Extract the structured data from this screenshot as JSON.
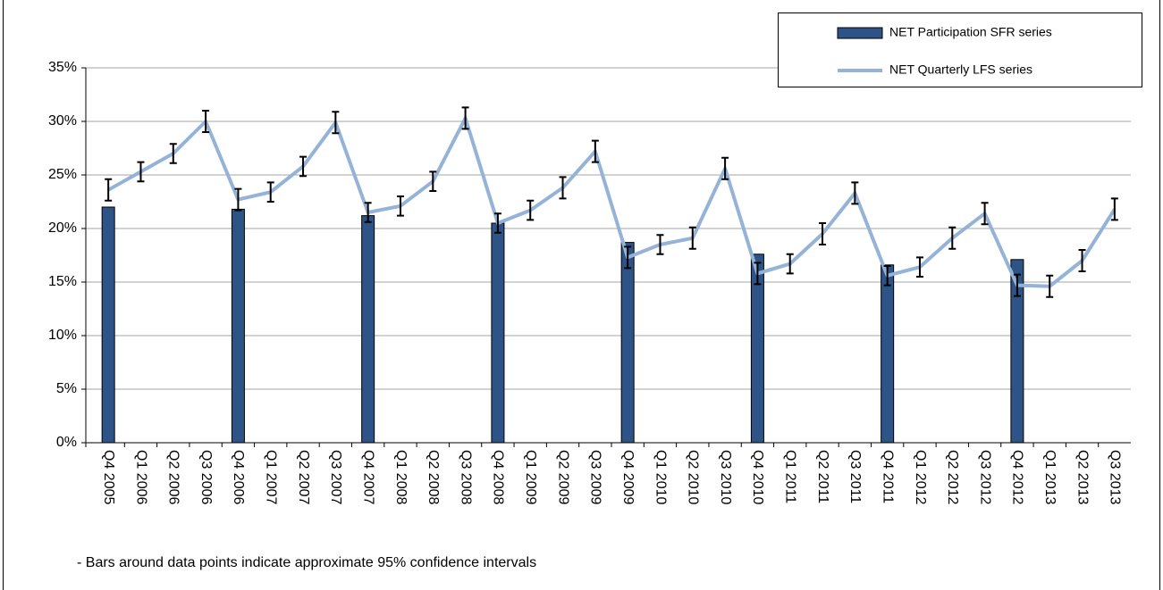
{
  "chart_data": {
    "type": "combo",
    "categories": [
      "Q4 2005",
      "Q1 2006",
      "Q2 2006",
      "Q3 2006",
      "Q4 2006",
      "Q1 2007",
      "Q2 2007",
      "Q3 2007",
      "Q4 2007",
      "Q1 2008",
      "Q2 2008",
      "Q3 2008",
      "Q4 2008",
      "Q1 2009",
      "Q2 2009",
      "Q3 2009",
      "Q4 2009",
      "Q1 2010",
      "Q2 2010",
      "Q3 2010",
      "Q4 2010",
      "Q1 2011",
      "Q2 2011",
      "Q3 2011",
      "Q4 2011",
      "Q1 2012",
      "Q2 2012",
      "Q3 2012",
      "Q4 2012",
      "Q1 2013",
      "Q2 2013",
      "Q3 2013"
    ],
    "series": [
      {
        "name": "NET Participation SFR series",
        "type": "bar",
        "color": "#2e5487",
        "values": [
          22.0,
          null,
          null,
          null,
          21.8,
          null,
          null,
          null,
          21.2,
          null,
          null,
          null,
          20.5,
          null,
          null,
          null,
          18.7,
          null,
          null,
          null,
          17.6,
          null,
          null,
          null,
          16.6,
          null,
          null,
          null,
          17.1,
          null,
          null,
          null
        ]
      },
      {
        "name": "NET Quarterly LFS series",
        "type": "line",
        "color": "#95b3d7",
        "values": [
          23.6,
          25.3,
          27.0,
          30.0,
          22.7,
          23.4,
          25.8,
          29.9,
          21.5,
          22.1,
          24.4,
          30.3,
          20.5,
          21.7,
          23.8,
          27.2,
          17.3,
          18.5,
          19.1,
          25.6,
          15.8,
          16.7,
          19.5,
          23.3,
          15.6,
          16.4,
          19.1,
          21.4,
          14.7,
          14.6,
          17.0,
          21.8
        ],
        "errors": [
          1.0,
          0.9,
          0.9,
          1.0,
          1.0,
          0.9,
          0.9,
          1.0,
          0.9,
          0.9,
          0.9,
          1.0,
          0.9,
          0.9,
          1.0,
          1.0,
          1.0,
          0.9,
          1.0,
          1.0,
          1.0,
          0.9,
          1.0,
          1.0,
          0.9,
          0.9,
          1.0,
          1.0,
          1.0,
          1.0,
          1.0,
          1.0
        ]
      }
    ],
    "ylim": [
      0,
      35
    ],
    "yticks": [
      {
        "value": 0,
        "label": "0%"
      },
      {
        "value": 5,
        "label": "5%"
      },
      {
        "value": 10,
        "label": "10%"
      },
      {
        "value": 15,
        "label": "15%"
      },
      {
        "value": 20,
        "label": "20%"
      },
      {
        "value": 25,
        "label": "25%"
      },
      {
        "value": 30,
        "label": "30%"
      },
      {
        "value": 35,
        "label": "35%"
      }
    ],
    "grid": true,
    "legend": "top-right",
    "annotation": "- Bars around data points indicate approximate 95% confidence intervals"
  }
}
